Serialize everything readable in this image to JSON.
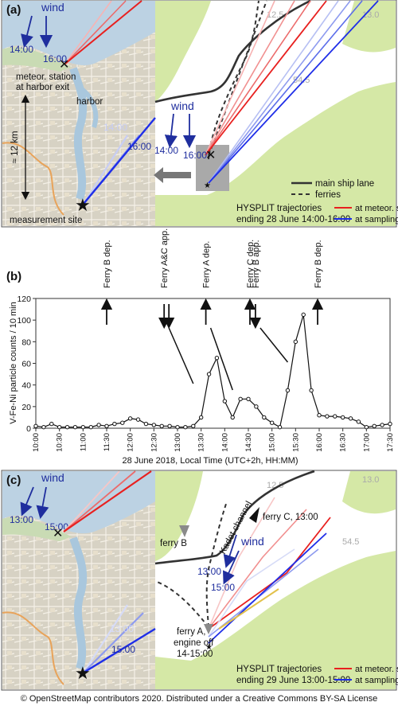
{
  "panel_a": {
    "label": "(a)",
    "wind_label": "wind",
    "wind_times": [
      "14:00",
      "16:00"
    ],
    "station_label_line1": "meteor. station",
    "station_label_line2": "at harbor exit",
    "harbor_label": "harbor",
    "scale_label": "≈ 12 km",
    "traj_time_labels": [
      "14:00",
      "16:00"
    ],
    "site_label": "measurement site",
    "lat_label": "54.5",
    "lon_labels": [
      "12.5",
      "13.0"
    ],
    "legend": {
      "main_lane": "main ship lane",
      "ferries": "ferries",
      "hysplit_line1": "HYSPLIT trajectories",
      "hysplit_line2": "ending 28 June 14:00-16:00",
      "met_station": "at meteor. station",
      "sampling_site": "at sampling site"
    },
    "colors": {
      "met_station": "#e8201f",
      "sampling_site": "#1f2ee8"
    }
  },
  "panel_b": {
    "label": "(b)",
    "chart_data": {
      "type": "line",
      "ylabel": "V-Fe-Ni particle counts / 10 min",
      "xlabel": "28 June 2018, Local Time (UTC+2h, HH:MM)",
      "ylim": [
        0,
        120
      ],
      "yticks": [
        0,
        20,
        40,
        60,
        80,
        100,
        120
      ],
      "xticks": [
        "10:00",
        "10:30",
        "11:00",
        "11:30",
        "12:00",
        "12:30",
        "13:00",
        "13:30",
        "14:00",
        "14:30",
        "15:00",
        "15:30",
        "16:00",
        "16:30",
        "17:00",
        "17:30"
      ],
      "x": [
        "10:00",
        "10:10",
        "10:20",
        "10:30",
        "10:40",
        "10:50",
        "11:00",
        "11:10",
        "11:20",
        "11:30",
        "11:40",
        "11:50",
        "12:00",
        "12:10",
        "12:20",
        "12:30",
        "12:40",
        "12:50",
        "13:00",
        "13:10",
        "13:20",
        "13:30",
        "13:40",
        "13:50",
        "14:00",
        "14:10",
        "14:20",
        "14:30",
        "14:40",
        "14:50",
        "15:00",
        "15:10",
        "15:20",
        "15:30",
        "15:40",
        "15:50",
        "16:00",
        "16:10",
        "16:20",
        "16:30",
        "16:40",
        "16:50",
        "17:00",
        "17:10",
        "17:20",
        "17:30"
      ],
      "values": [
        2,
        1,
        4,
        1,
        1,
        1,
        1,
        1,
        3,
        2,
        4,
        5,
        9,
        8,
        4,
        3,
        2,
        2,
        1,
        1,
        2,
        10,
        50,
        65,
        25,
        10,
        27,
        27,
        20,
        10,
        5,
        1,
        35,
        80,
        105,
        35,
        12,
        11,
        11,
        10,
        9,
        6,
        1,
        2,
        3,
        4
      ]
    },
    "events": [
      {
        "label": "Ferry B dep.",
        "time": "11:30",
        "direction": "up"
      },
      {
        "label": "Ferry A&C app.",
        "time": "12:43",
        "direction": "down"
      },
      {
        "label": "Ferry A dep.",
        "time": "13:36",
        "direction": "up"
      },
      {
        "label": "Ferry C dep.",
        "time": "14:32",
        "direction": "up"
      },
      {
        "label": "Ferry B app.",
        "time": "14:39",
        "direction": "down"
      },
      {
        "label": "Ferry B dep.",
        "time": "15:58",
        "direction": "up"
      }
    ]
  },
  "panel_c": {
    "label": "(c)",
    "wind_label": "wind",
    "wind_times": [
      "13:00",
      "15:00"
    ],
    "traj_time_labels": [
      "13:00",
      "15:00"
    ],
    "lat_label": "54.5",
    "lon_labels": [
      "12.5",
      "13.0"
    ],
    "channel_label": "Kadet channel",
    "ferry_b_label": "ferry B",
    "ferry_c_label": "ferry C, 13:00",
    "wind_right_label": "wind",
    "wind_right_times": [
      "13:00",
      "15:00"
    ],
    "ferry_a_line1": "ferry A,",
    "ferry_a_line2": "engine off",
    "ferry_a_line3": "14-15:00",
    "legend": {
      "hysplit_line1": "HYSPLIT trajectories",
      "hysplit_line2": "ending 29 June 13:00-15:00",
      "met_station": "at meteor. station",
      "sampling_site": "at sampling site"
    }
  },
  "footer": "© OpenStreetMap contributors 2020. Distributed under a Creative Commons BY-SA License"
}
